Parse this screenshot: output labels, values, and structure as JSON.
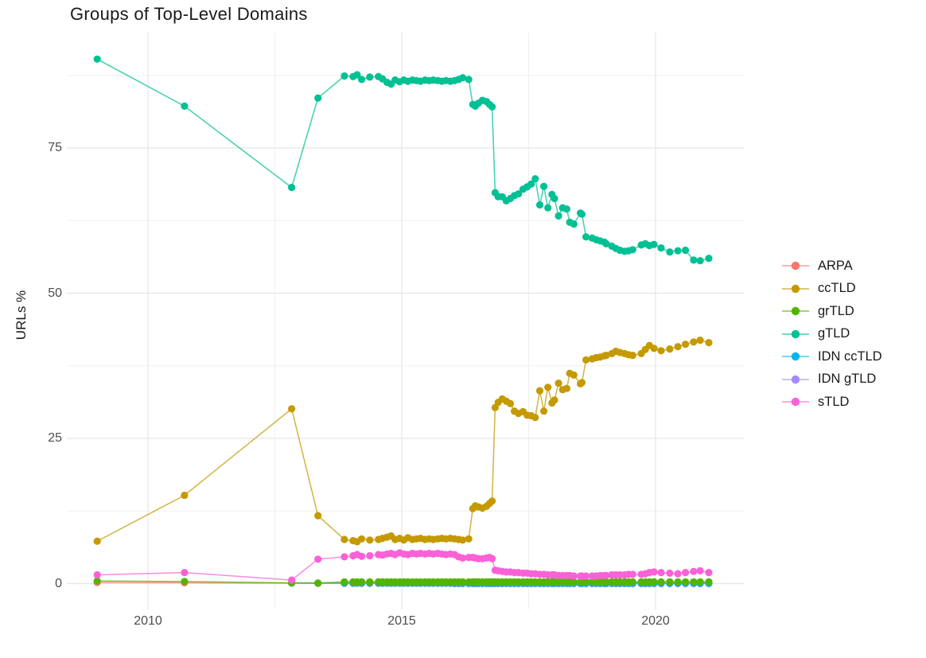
{
  "title": "Groups of Top-Level Domains",
  "axes": {
    "y_label": "URLs %",
    "y_ticks": [
      "0",
      "25",
      "50",
      "75"
    ],
    "y_tick_values": [
      0,
      25,
      50,
      75
    ],
    "x_ticks": [
      "2010",
      "2015",
      "2020"
    ],
    "x_tick_values": [
      2010,
      2015,
      2020
    ]
  },
  "legend": {
    "position": "right",
    "items": [
      {
        "label": "ARPA",
        "color": "#F8766D"
      },
      {
        "label": "ccTLD",
        "color": "#C49A00"
      },
      {
        "label": "grTLD",
        "color": "#53B400"
      },
      {
        "label": "gTLD",
        "color": "#00C094"
      },
      {
        "label": "IDN ccTLD",
        "color": "#00B6EB"
      },
      {
        "label": "IDN gTLD",
        "color": "#A58AFF"
      },
      {
        "label": "sTLD",
        "color": "#FB61D7"
      }
    ]
  },
  "chart_data": {
    "type": "line",
    "title": "Groups of Top-Level Domains",
    "xlabel": "",
    "ylabel": "URLs %",
    "xlim": [
      2008.4,
      2021.65
    ],
    "ylim": [
      -4.5,
      94.8
    ],
    "grid": true,
    "x_minor_gridlines": [
      2012.5,
      2017.5
    ],
    "y_minor_gridlines": [
      12.5,
      37.5,
      62.5,
      87.5
    ],
    "x_early": [
      2009.0,
      2010.72,
      2012.83,
      2013.35
    ],
    "x_dense": [
      2013.87,
      2014.04,
      2014.12,
      2014.21,
      2014.37,
      2014.54,
      2014.62,
      2014.71,
      2014.79,
      2014.87,
      2014.96,
      2015.04,
      2015.12,
      2015.21,
      2015.29,
      2015.37,
      2015.46,
      2015.54,
      2015.62,
      2015.71,
      2015.79,
      2015.87,
      2015.96,
      2016.04,
      2016.12,
      2016.2,
      2016.32,
      2016.4,
      2016.45,
      2016.51,
      2016.59,
      2016.67,
      2016.73,
      2016.78,
      2016.84,
      2016.9,
      2016.98,
      2017.06,
      2017.14,
      2017.22,
      2017.3,
      2017.39,
      2017.47,
      2017.55,
      2017.63,
      2017.72,
      2017.8,
      2017.88,
      2017.96,
      2018.01,
      2018.09,
      2018.17,
      2018.25,
      2018.31,
      2018.39,
      2018.52,
      2018.55,
      2018.63,
      2018.75,
      2018.83,
      2018.91,
      2018.99,
      2019.03,
      2019.14,
      2019.22,
      2019.3,
      2019.39,
      2019.47,
      2019.55,
      2019.72,
      2019.8,
      2019.88,
      2019.97,
      2020.11,
      2020.28,
      2020.44,
      2020.59,
      2020.75,
      2020.88,
      2021.05
    ],
    "series": [
      {
        "name": "ARPA",
        "color": "#F8766D",
        "y_early": [
          0.2,
          0.15,
          0.08,
          0.05
        ],
        "dense_constant": 0.05
      },
      {
        "name": "IDN gTLD",
        "color": "#A58AFF",
        "dense_constant": 0.0,
        "dense_from": 2016.0
      },
      {
        "name": "IDN ccTLD",
        "color": "#00B6EB",
        "x_extra": [
          2012.83,
          2013.35
        ],
        "y_extra": [
          0.12,
          0.08
        ],
        "dense_constant": 0.1
      },
      {
        "name": "grTLD",
        "color": "#53B400",
        "y_early": [
          0.45,
          0.35,
          0.12,
          0.1
        ],
        "dense_constant": 0.3
      },
      {
        "name": "ccTLD",
        "color": "#C49A00",
        "y_early": [
          7.3,
          15.2,
          30.1,
          11.7
        ],
        "y_dense": [
          7.6,
          7.4,
          7.2,
          7.7,
          7.5,
          7.6,
          7.8,
          8.0,
          8.2,
          7.6,
          7.8,
          7.5,
          7.9,
          7.6,
          7.7,
          7.8,
          7.6,
          7.7,
          7.6,
          7.7,
          7.8,
          7.7,
          7.8,
          7.7,
          7.6,
          7.5,
          7.7,
          12.9,
          13.4,
          13.2,
          13.0,
          13.3,
          13.8,
          14.2,
          30.3,
          31.2,
          31.8,
          31.4,
          31.0,
          29.7,
          29.3,
          29.6,
          29.0,
          28.9,
          28.6,
          33.2,
          29.7,
          33.8,
          31.1,
          31.6,
          34.5,
          33.4,
          33.6,
          36.2,
          35.9,
          34.4,
          34.6,
          38.5,
          38.7,
          38.9,
          39.0,
          39.2,
          39.3,
          39.6,
          40.0,
          39.8,
          39.6,
          39.4,
          39.3,
          39.6,
          40.3,
          41.0,
          40.5,
          40.1,
          40.4,
          40.8,
          41.2,
          41.6,
          41.9,
          41.5
        ]
      },
      {
        "name": "gTLD",
        "color": "#00C094",
        "y_early": [
          90.3,
          82.2,
          68.2,
          83.6
        ],
        "y_dense": [
          87.4,
          87.3,
          87.6,
          86.8,
          87.2,
          87.3,
          86.9,
          86.3,
          86.0,
          86.7,
          86.4,
          86.7,
          86.5,
          86.7,
          86.6,
          86.5,
          86.7,
          86.6,
          86.7,
          86.6,
          86.5,
          86.6,
          86.5,
          86.6,
          86.8,
          87.1,
          86.8,
          82.5,
          82.2,
          82.7,
          83.2,
          83.0,
          82.5,
          82.1,
          67.3,
          66.6,
          66.6,
          65.9,
          66.3,
          66.8,
          67.1,
          67.9,
          68.3,
          68.8,
          69.7,
          65.2,
          68.4,
          64.7,
          67.0,
          66.3,
          63.3,
          64.7,
          64.5,
          62.2,
          61.9,
          63.8,
          63.6,
          59.7,
          59.5,
          59.2,
          59.0,
          58.8,
          58.5,
          58.1,
          57.7,
          57.4,
          57.2,
          57.3,
          57.5,
          58.3,
          58.5,
          58.2,
          58.4,
          57.8,
          57.1,
          57.3,
          57.4,
          55.7,
          55.6,
          56.0
        ]
      },
      {
        "name": "sTLD",
        "color": "#FB61D7",
        "y_early": [
          1.5,
          1.9,
          0.6,
          4.2
        ],
        "y_dense": [
          4.6,
          4.8,
          5.0,
          4.7,
          4.8,
          5.0,
          4.9,
          5.1,
          5.2,
          5.0,
          5.3,
          5.1,
          5.0,
          5.2,
          5.1,
          5.2,
          5.1,
          5.2,
          5.1,
          5.2,
          5.1,
          5.0,
          5.1,
          5.0,
          4.6,
          4.4,
          4.5,
          4.5,
          4.4,
          4.3,
          4.3,
          4.4,
          4.5,
          4.3,
          2.3,
          2.2,
          2.1,
          2.0,
          2.0,
          1.9,
          1.9,
          1.8,
          1.8,
          1.7,
          1.7,
          1.6,
          1.6,
          1.5,
          1.5,
          1.5,
          1.4,
          1.4,
          1.4,
          1.4,
          1.3,
          1.3,
          1.3,
          1.3,
          1.3,
          1.3,
          1.4,
          1.4,
          1.4,
          1.5,
          1.5,
          1.5,
          1.5,
          1.6,
          1.6,
          1.6,
          1.7,
          1.9,
          2.0,
          1.9,
          1.8,
          1.7,
          1.9,
          2.1,
          2.2,
          1.9
        ]
      }
    ]
  }
}
